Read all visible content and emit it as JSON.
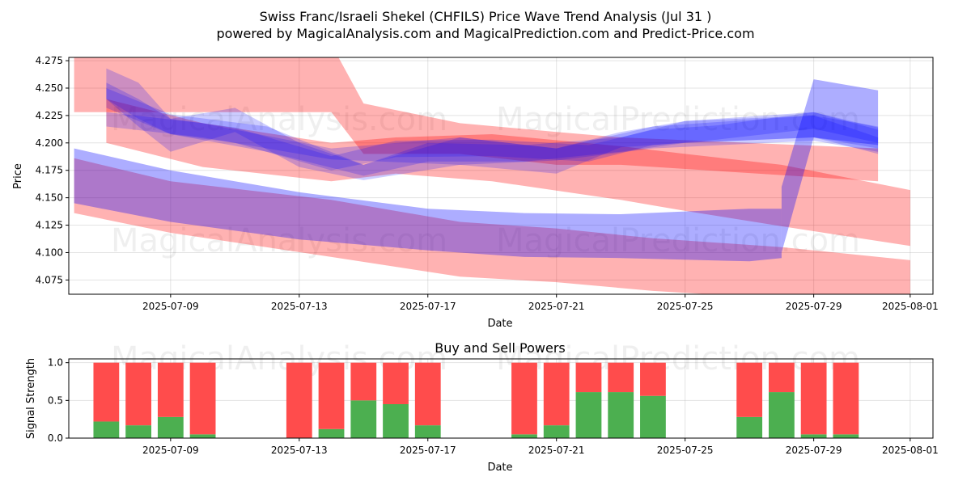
{
  "chart_data": [
    {
      "type": "area",
      "title": "Swiss Franc/Israeli Shekel (CHFILS) Price Wave Trend Analysis (Jul 31 )",
      "subtitle": "powered by MagicalAnalysis.com and MagicalPrediction.com and Predict-Price.com",
      "xlabel": "Date",
      "ylabel": "Price",
      "xlim": [
        "2025-07-05T20:00",
        "2025-08-01T17:00"
      ],
      "ylim": [
        4.062,
        4.278
      ],
      "x_ticks": [
        "2025-07-09",
        "2025-07-13",
        "2025-07-17",
        "2025-07-21",
        "2025-07-25",
        "2025-07-29",
        "2025-08-01"
      ],
      "y_ticks": [
        4.075,
        4.1,
        4.125,
        4.15,
        4.175,
        4.2,
        4.225,
        4.25,
        4.275
      ],
      "grid": true,
      "watermarks": [
        "MagicalAnalysis.com",
        "MagicalPrediction.com",
        "MagicalAnalysis.com",
        "MagicalPrediction.com"
      ],
      "series": [
        {
          "color": "#ff0000",
          "opacity": 0.3,
          "x": [
            "2025-07-06",
            "2025-07-14",
            "2025-07-15",
            "2025-07-18",
            "2025-07-21",
            "2025-07-23",
            "2025-07-31"
          ],
          "lower": [
            4.228,
            4.228,
            4.19,
            4.19,
            4.18,
            4.18,
            4.165
          ],
          "upper": [
            4.29,
            4.29,
            4.236,
            4.218,
            4.21,
            4.205,
            4.195
          ]
        },
        {
          "color": "#ff0000",
          "opacity": 0.3,
          "x": [
            "2025-07-07",
            "2025-07-10",
            "2025-07-14",
            "2025-07-16",
            "2025-07-19",
            "2025-07-23",
            "2025-07-25",
            "2025-07-28",
            "2025-08-01"
          ],
          "lower": [
            4.2,
            4.178,
            4.165,
            4.172,
            4.165,
            4.148,
            4.138,
            4.124,
            4.106
          ],
          "upper": [
            4.24,
            4.218,
            4.2,
            4.205,
            4.208,
            4.197,
            4.19,
            4.18,
            4.157
          ]
        },
        {
          "color": "#ff0000",
          "opacity": 0.3,
          "x": [
            "2025-07-06",
            "2025-07-09",
            "2025-07-14",
            "2025-07-18",
            "2025-07-21",
            "2025-07-24",
            "2025-07-28",
            "2025-08-01"
          ],
          "lower": [
            4.136,
            4.118,
            4.096,
            4.078,
            4.073,
            4.065,
            4.058,
            4.055
          ],
          "upper": [
            4.186,
            4.165,
            4.148,
            4.128,
            4.122,
            4.113,
            4.105,
            4.093
          ]
        },
        {
          "color": "#0000ff",
          "opacity": 0.32,
          "x": [
            "2025-07-06",
            "2025-07-09",
            "2025-07-13",
            "2025-07-17",
            "2025-07-20",
            "2025-07-23",
            "2025-07-27",
            "2025-07-28"
          ],
          "lower": [
            4.145,
            4.128,
            4.112,
            4.102,
            4.096,
            4.095,
            4.092,
            4.095
          ],
          "upper": [
            4.195,
            4.175,
            4.155,
            4.14,
            4.136,
            4.135,
            4.14,
            4.14
          ]
        },
        {
          "color": "#0000ff",
          "opacity": 0.32,
          "x": [
            "2025-07-28",
            "2025-07-29",
            "2025-07-31"
          ],
          "lower": [
            4.1,
            4.205,
            4.198
          ],
          "upper": [
            4.16,
            4.258,
            4.248
          ]
        },
        {
          "color": "#0000ff",
          "opacity": 0.2,
          "x": [
            "2025-07-07",
            "2025-07-10",
            "2025-07-14",
            "2025-07-18",
            "2025-07-21",
            "2025-07-24",
            "2025-07-29",
            "2025-07-31"
          ],
          "lower": [
            4.215,
            4.205,
            4.185,
            4.18,
            4.184,
            4.195,
            4.202,
            4.192
          ],
          "upper": [
            4.228,
            4.218,
            4.195,
            4.205,
            4.195,
            4.215,
            4.225,
            4.215
          ]
        },
        {
          "color": "#0000ff",
          "opacity": 0.2,
          "x": [
            "2025-07-07",
            "2025-07-09",
            "2025-07-12",
            "2025-07-15",
            "2025-07-17",
            "2025-07-20",
            "2025-07-23",
            "2025-07-25",
            "2025-07-29",
            "2025-07-31"
          ],
          "lower": [
            4.232,
            4.208,
            4.192,
            4.17,
            4.183,
            4.183,
            4.192,
            4.2,
            4.205,
            4.195
          ],
          "upper": [
            4.25,
            4.226,
            4.215,
            4.18,
            4.2,
            4.198,
            4.205,
            4.22,
            4.228,
            4.212
          ]
        },
        {
          "color": "#0000ff",
          "opacity": 0.2,
          "x": [
            "2025-07-07",
            "2025-07-08",
            "2025-07-09",
            "2025-07-11",
            "2025-07-14",
            "2025-07-16",
            "2025-07-19",
            "2025-07-22",
            "2025-07-24",
            "2025-07-26",
            "2025-07-29",
            "2025-07-31"
          ],
          "lower": [
            4.24,
            4.222,
            4.208,
            4.2,
            4.175,
            4.187,
            4.188,
            4.183,
            4.198,
            4.203,
            4.213,
            4.2
          ],
          "upper": [
            4.255,
            4.24,
            4.222,
            4.214,
            4.188,
            4.202,
            4.203,
            4.198,
            4.212,
            4.216,
            4.228,
            4.214
          ]
        },
        {
          "color": "#0000ff",
          "opacity": 0.2,
          "x": [
            "2025-07-07",
            "2025-07-08",
            "2025-07-09",
            "2025-07-11",
            "2025-07-13",
            "2025-07-15",
            "2025-07-18",
            "2025-07-21",
            "2025-07-23",
            "2025-07-25",
            "2025-07-29",
            "2025-07-31"
          ],
          "lower": [
            4.24,
            4.215,
            4.192,
            4.21,
            4.178,
            4.166,
            4.18,
            4.172,
            4.196,
            4.2,
            4.205,
            4.19
          ],
          "upper": [
            4.268,
            4.255,
            4.222,
            4.232,
            4.2,
            4.18,
            4.205,
            4.195,
            4.21,
            4.22,
            4.225,
            4.205
          ]
        }
      ]
    },
    {
      "type": "bar",
      "title": "Buy and Sell Powers",
      "xlabel": "Date",
      "ylabel": "Signal Strength",
      "ylim": [
        0,
        1.05
      ],
      "y_ticks": [
        "0.0",
        "0.5",
        "1.0"
      ],
      "x_ticks": [
        "2025-07-09",
        "2025-07-13",
        "2025-07-17",
        "2025-07-21",
        "2025-07-25",
        "2025-07-29",
        "2025-08-01"
      ],
      "grid": true,
      "buy_color": "#4caf50",
      "sell_color": "#ff4c4c",
      "dates": [
        "2025-07-07",
        "2025-07-08",
        "2025-07-09",
        "2025-07-10",
        "2025-07-13",
        "2025-07-14",
        "2025-07-15",
        "2025-07-16",
        "2025-07-17",
        "2025-07-20",
        "2025-07-21",
        "2025-07-22",
        "2025-07-23",
        "2025-07-24",
        "2025-07-27",
        "2025-07-28",
        "2025-07-29",
        "2025-07-30"
      ],
      "buy": [
        0.22,
        0.17,
        0.28,
        0.05,
        0.0,
        0.12,
        0.5,
        0.45,
        0.17,
        0.05,
        0.17,
        0.61,
        0.61,
        0.56,
        0.28,
        0.61,
        0.05,
        0.05
      ],
      "sell": [
        0.78,
        0.83,
        0.72,
        0.95,
        1.0,
        0.88,
        0.5,
        0.55,
        0.83,
        0.95,
        0.83,
        0.39,
        0.39,
        0.44,
        0.72,
        0.39,
        0.95,
        0.95
      ]
    }
  ]
}
